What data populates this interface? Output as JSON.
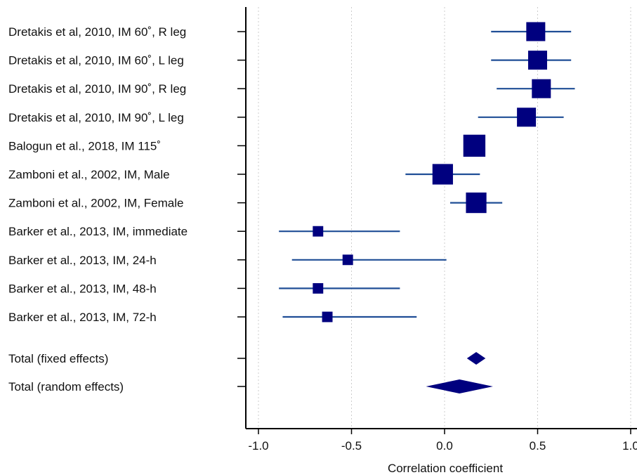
{
  "chart_data": {
    "type": "forest",
    "xlabel": "Correlation coefficient",
    "xlim": [
      -1.0,
      1.0
    ],
    "xticks": [
      {
        "value": -1.0,
        "label": "-1.0"
      },
      {
        "value": -0.5,
        "label": "-0.5"
      },
      {
        "value": 0.0,
        "label": "0.0"
      },
      {
        "value": 0.5,
        "label": "0.5"
      },
      {
        "value": 1.0,
        "label": "1.0"
      }
    ],
    "grid": "vertical dotted",
    "colors": {
      "marker": "#00007f",
      "ci_line": "#1f4e96",
      "axis": "#000000",
      "grid": "#cccccc"
    },
    "studies": [
      {
        "label": "Dretakis et al, 2010, IM 60˚, R leg",
        "estimate": 0.49,
        "ci_low": 0.25,
        "ci_high": 0.68,
        "weight": 1.0
      },
      {
        "label": "Dretakis et al, 2010, IM 60˚, L leg",
        "estimate": 0.5,
        "ci_low": 0.25,
        "ci_high": 0.68,
        "weight": 1.0
      },
      {
        "label": "Dretakis et al, 2010, IM 90˚, R leg",
        "estimate": 0.52,
        "ci_low": 0.28,
        "ci_high": 0.7,
        "weight": 1.0
      },
      {
        "label": "Dretakis et al, 2010, IM 90˚, L leg",
        "estimate": 0.44,
        "ci_low": 0.18,
        "ci_high": 0.64,
        "weight": 1.0
      },
      {
        "label": "Balogun et al., 2018, IM 115˚",
        "estimate": 0.16,
        "ci_low": 0.16,
        "ci_high": 0.16,
        "weight": 1.2
      },
      {
        "label": "Zamboni et al., 2002, IM, Male",
        "estimate": -0.01,
        "ci_low": -0.21,
        "ci_high": 0.19,
        "weight": 1.1
      },
      {
        "label": "Zamboni et al., 2002, IM, Female",
        "estimate": 0.17,
        "ci_low": 0.03,
        "ci_high": 0.31,
        "weight": 1.1
      },
      {
        "label": "Barker et al., 2013, IM, immediate",
        "estimate": -0.68,
        "ci_low": -0.89,
        "ci_high": -0.24,
        "weight": 0.45
      },
      {
        "label": "Barker et al., 2013, IM, 24-h",
        "estimate": -0.52,
        "ci_low": -0.82,
        "ci_high": 0.01,
        "weight": 0.45
      },
      {
        "label": "Barker et al., 2013, IM, 48-h",
        "estimate": -0.68,
        "ci_low": -0.89,
        "ci_high": -0.24,
        "weight": 0.45
      },
      {
        "label": "Barker et al., 2013, IM, 72-h",
        "estimate": -0.63,
        "ci_low": -0.87,
        "ci_high": -0.15,
        "weight": 0.45
      }
    ],
    "totals": [
      {
        "label": "Total (fixed effects)",
        "estimate": 0.17,
        "ci_low": 0.12,
        "ci_high": 0.22
      },
      {
        "label": "Total (random effects)",
        "estimate": 0.08,
        "ci_low": -0.1,
        "ci_high": 0.26
      }
    ]
  }
}
